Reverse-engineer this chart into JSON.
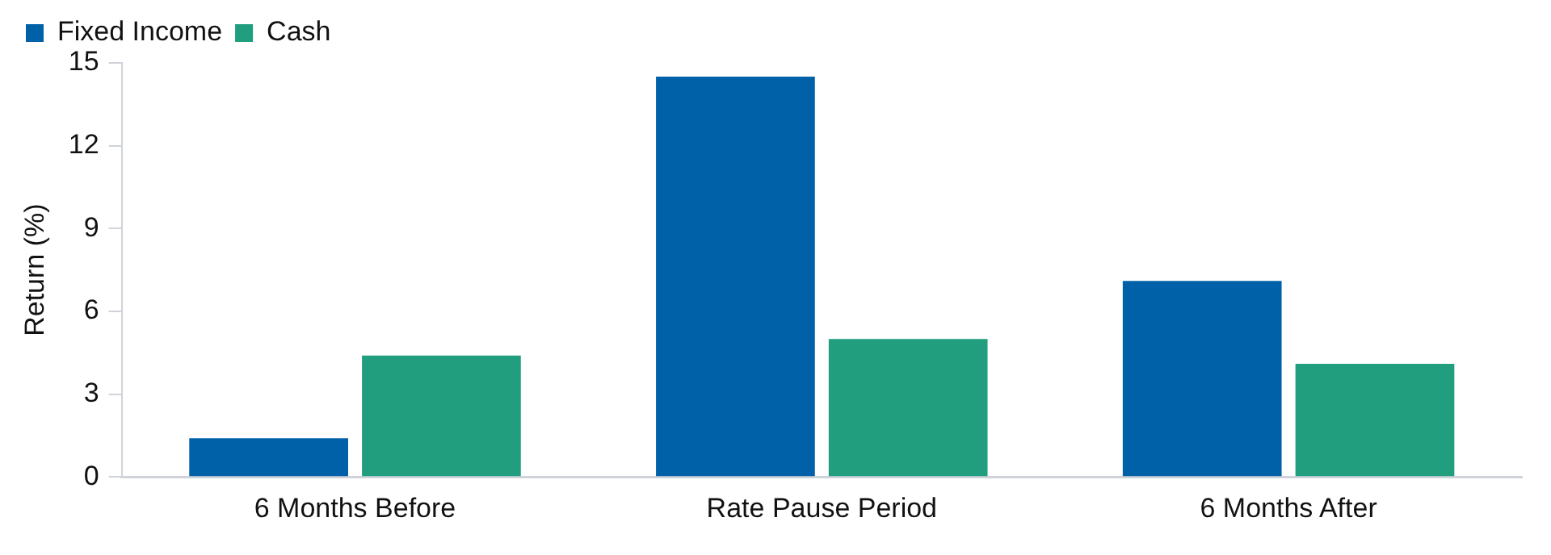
{
  "chart_data": {
    "type": "bar",
    "ylabel": "Return (%)",
    "categories": [
      "6 Months Before",
      "Rate Pause Period",
      "6 Months After"
    ],
    "series": [
      {
        "name": "Fixed Income",
        "color": "#0060a8",
        "values": [
          1.4,
          14.5,
          7.1
        ]
      },
      {
        "name": "Cash",
        "color": "#209e7e",
        "values": [
          4.4,
          5.0,
          4.1
        ]
      }
    ],
    "ylim": [
      0,
      15
    ],
    "yticks": [
      0,
      3,
      6,
      9,
      12,
      15
    ],
    "grid": false,
    "legend": "top left"
  }
}
